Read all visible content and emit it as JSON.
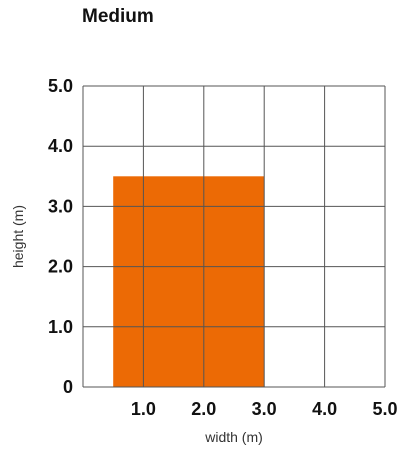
{
  "chart_data": {
    "type": "rectangle",
    "title": "Medium",
    "xlabel": "width (m)",
    "ylabel": "height (m)",
    "xlim": [
      0,
      5
    ],
    "ylim": [
      0,
      5
    ],
    "x_ticks": [
      {
        "value": 1,
        "label": "1.0"
      },
      {
        "value": 2,
        "label": "2.0"
      },
      {
        "value": 3,
        "label": "3.0"
      },
      {
        "value": 4,
        "label": "4.0"
      },
      {
        "value": 5,
        "label": "5.0"
      }
    ],
    "y_ticks": [
      {
        "value": 0,
        "label": "0"
      },
      {
        "value": 1,
        "label": "1.0"
      },
      {
        "value": 2,
        "label": "2.0"
      },
      {
        "value": 3,
        "label": "3.0"
      },
      {
        "value": 4,
        "label": "4.0"
      },
      {
        "value": 5,
        "label": "5.0"
      }
    ],
    "grid": true,
    "rectangle": {
      "x_start": 0.5,
      "x_end": 3.0,
      "y_start": 0,
      "y_end": 3.5,
      "color": "#ec6a05"
    },
    "grid_color": "#555555"
  }
}
